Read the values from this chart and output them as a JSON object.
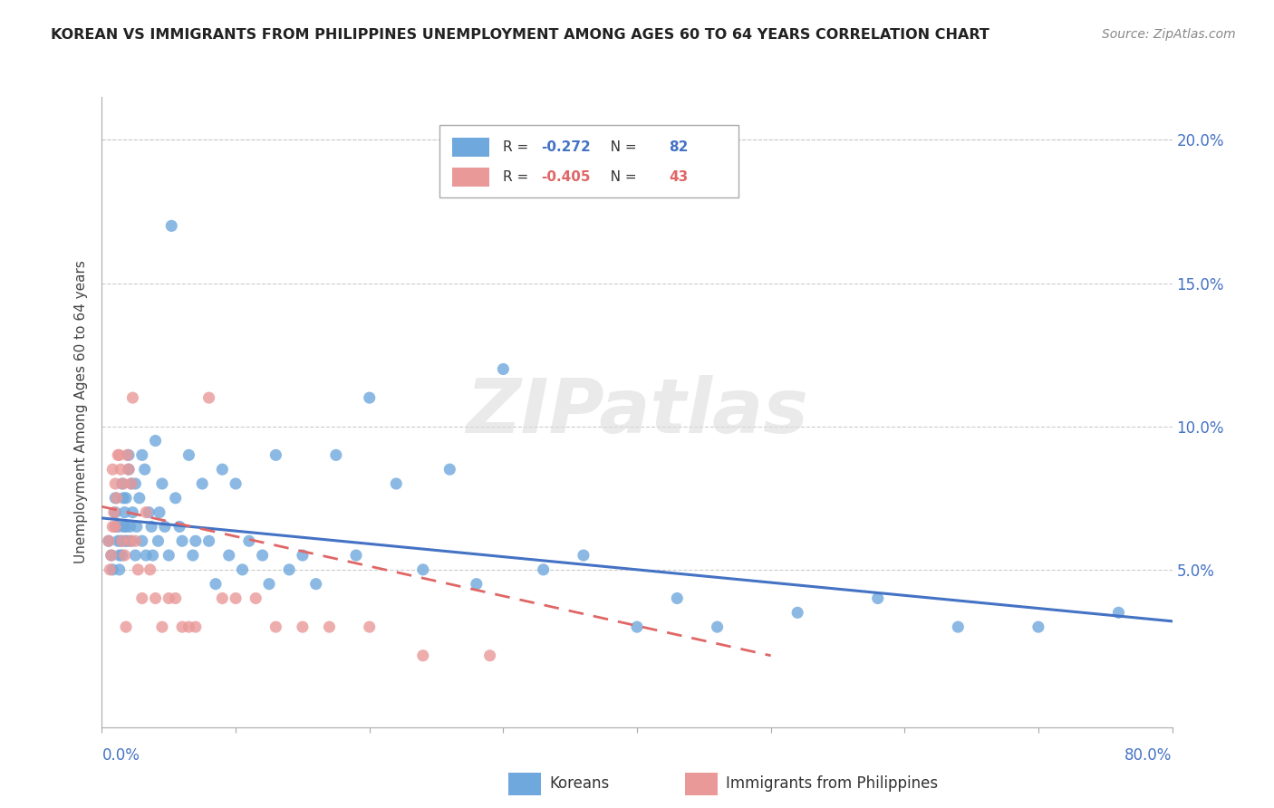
{
  "title": "KOREAN VS IMMIGRANTS FROM PHILIPPINES UNEMPLOYMENT AMONG AGES 60 TO 64 YEARS CORRELATION CHART",
  "source": "Source: ZipAtlas.com",
  "ylabel": "Unemployment Among Ages 60 to 64 years",
  "xlim": [
    0.0,
    0.8
  ],
  "ylim": [
    -0.005,
    0.215
  ],
  "yticks": [
    0.0,
    0.05,
    0.1,
    0.15,
    0.2
  ],
  "ytick_labels": [
    "",
    "5.0%",
    "10.0%",
    "15.0%",
    "20.0%"
  ],
  "korean_R": "-0.272",
  "korean_N": "82",
  "philippines_R": "-0.405",
  "philippines_N": "43",
  "korean_color": "#6fa8dc",
  "philippines_color": "#ea9999",
  "trendline_korean_color": "#4472c4",
  "trendline_philippines_color": "#e06666",
  "watermark": "ZIPatlas",
  "legend_korean": "Koreans",
  "legend_philippines": "Immigrants from Philippines",
  "korean_x": [
    0.005,
    0.007,
    0.008,
    0.01,
    0.01,
    0.01,
    0.012,
    0.012,
    0.013,
    0.013,
    0.014,
    0.015,
    0.015,
    0.016,
    0.016,
    0.017,
    0.017,
    0.018,
    0.018,
    0.019,
    0.02,
    0.02,
    0.021,
    0.022,
    0.022,
    0.023,
    0.025,
    0.025,
    0.026,
    0.028,
    0.03,
    0.03,
    0.032,
    0.033,
    0.035,
    0.037,
    0.038,
    0.04,
    0.042,
    0.043,
    0.045,
    0.047,
    0.05,
    0.052,
    0.055,
    0.058,
    0.06,
    0.065,
    0.068,
    0.07,
    0.075,
    0.08,
    0.085,
    0.09,
    0.095,
    0.1,
    0.105,
    0.11,
    0.12,
    0.125,
    0.13,
    0.14,
    0.15,
    0.16,
    0.175,
    0.19,
    0.2,
    0.22,
    0.24,
    0.26,
    0.28,
    0.3,
    0.33,
    0.36,
    0.4,
    0.43,
    0.46,
    0.52,
    0.58,
    0.64,
    0.7,
    0.76
  ],
  "korean_y": [
    0.06,
    0.055,
    0.05,
    0.065,
    0.07,
    0.075,
    0.06,
    0.065,
    0.055,
    0.05,
    0.06,
    0.08,
    0.055,
    0.075,
    0.065,
    0.06,
    0.07,
    0.065,
    0.075,
    0.06,
    0.085,
    0.09,
    0.065,
    0.08,
    0.06,
    0.07,
    0.08,
    0.055,
    0.065,
    0.075,
    0.09,
    0.06,
    0.085,
    0.055,
    0.07,
    0.065,
    0.055,
    0.095,
    0.06,
    0.07,
    0.08,
    0.065,
    0.055,
    0.17,
    0.075,
    0.065,
    0.06,
    0.09,
    0.055,
    0.06,
    0.08,
    0.06,
    0.045,
    0.085,
    0.055,
    0.08,
    0.05,
    0.06,
    0.055,
    0.045,
    0.09,
    0.05,
    0.055,
    0.045,
    0.09,
    0.055,
    0.11,
    0.08,
    0.05,
    0.085,
    0.045,
    0.12,
    0.05,
    0.055,
    0.03,
    0.04,
    0.03,
    0.035,
    0.04,
    0.03,
    0.03,
    0.035
  ],
  "phil_x": [
    0.005,
    0.006,
    0.007,
    0.008,
    0.008,
    0.009,
    0.01,
    0.01,
    0.011,
    0.012,
    0.013,
    0.014,
    0.015,
    0.016,
    0.017,
    0.018,
    0.019,
    0.02,
    0.021,
    0.022,
    0.023,
    0.025,
    0.027,
    0.03,
    0.033,
    0.036,
    0.04,
    0.045,
    0.05,
    0.055,
    0.06,
    0.065,
    0.07,
    0.08,
    0.09,
    0.1,
    0.115,
    0.13,
    0.15,
    0.17,
    0.2,
    0.24,
    0.29
  ],
  "phil_y": [
    0.06,
    0.05,
    0.055,
    0.065,
    0.085,
    0.07,
    0.065,
    0.08,
    0.075,
    0.09,
    0.09,
    0.085,
    0.06,
    0.08,
    0.055,
    0.03,
    0.09,
    0.085,
    0.06,
    0.08,
    0.11,
    0.06,
    0.05,
    0.04,
    0.07,
    0.05,
    0.04,
    0.03,
    0.04,
    0.04,
    0.03,
    0.03,
    0.03,
    0.11,
    0.04,
    0.04,
    0.04,
    0.03,
    0.03,
    0.03,
    0.03,
    0.02,
    0.02
  ],
  "trend_korean_x0": 0.0,
  "trend_korean_x1": 0.8,
  "trend_korean_y0": 0.068,
  "trend_korean_y1": 0.032,
  "trend_phil_x0": 0.0,
  "trend_phil_x1": 0.5,
  "trend_phil_y0": 0.072,
  "trend_phil_y1": 0.02
}
